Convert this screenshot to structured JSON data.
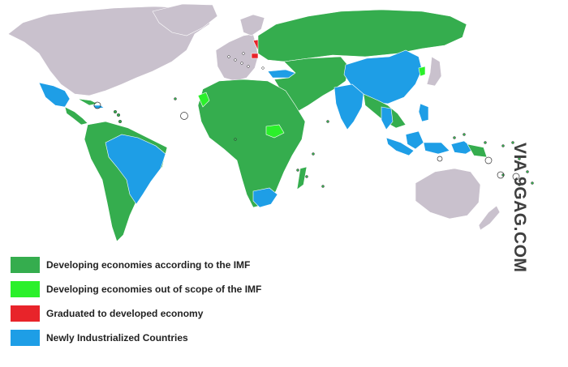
{
  "colors": {
    "developed_other": "#c9c1cd",
    "developing": "#35ad4e",
    "out_of_scope": "#2bf02b",
    "graduated": "#e8242a",
    "newly_industrialized": "#1e9ee6",
    "border": "#ffffff",
    "ocean": "#ffffff"
  },
  "legend": {
    "items": [
      {
        "label": "Developing economies according to the IMF",
        "color": "#35ad4e"
      },
      {
        "label": "Developing economies out of scope of the IMF",
        "color": "#2bf02b"
      },
      {
        "label": "Graduated to developed economy",
        "color": "#e8242a"
      },
      {
        "label": "Newly Industrialized Countries",
        "color": "#1e9ee6"
      }
    ]
  },
  "watermark": "VIA 9GAG.COM"
}
